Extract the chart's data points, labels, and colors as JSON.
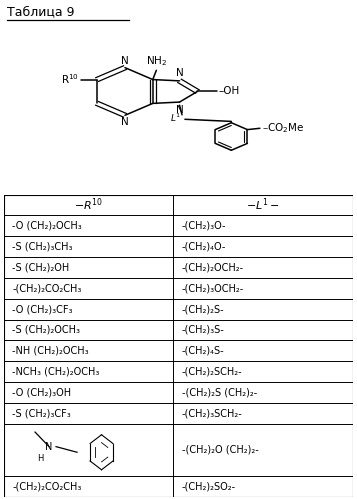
{
  "title": "Таблица 9",
  "col1_header": "-R¹⁰",
  "col2_header": "-L¹-",
  "rows": [
    [
      "-O (CH₂)₂OCH₃",
      "-(CH₂)₃O-"
    ],
    [
      "-S (CH₂)₃CH₃",
      "-(CH₂)₄O-"
    ],
    [
      "-S (CH₂)₂OH",
      "-(CH₂)₂OCH₂-"
    ],
    [
      "-(CH₂)₂CO₂CH₃",
      "-(CH₂)₃OCH₂-"
    ],
    [
      "-O (CH₂)₃CF₃",
      "-(CH₂)₂S-"
    ],
    [
      "-S (CH₂)₂OCH₃",
      "-(CH₂)₃S-"
    ],
    [
      "-NH (CH₂)₂OCH₃",
      "-(CH₂)₄S-"
    ],
    [
      "-NCH₃ (CH₂)₂OCH₃",
      "-(CH₂)₂SCH₂-"
    ],
    [
      "-O (CH₂)₃OH",
      "-(CH₂)₂S (CH₂)₂-"
    ],
    [
      "-S (CH₂)₃CF₃",
      "-(CH₂)₃SCH₂-"
    ],
    [
      "__structure__",
      "-(CH₂)₂O (CH₂)₂-"
    ],
    [
      "-(CH₂)₂CO₂CH₃",
      "-(CH₂)₂SO₂-"
    ]
  ],
  "bg_color": "#ffffff",
  "line_color": "#000000",
  "text_color": "#000000",
  "fontsize": 7.0,
  "header_fontsize": 8.0
}
